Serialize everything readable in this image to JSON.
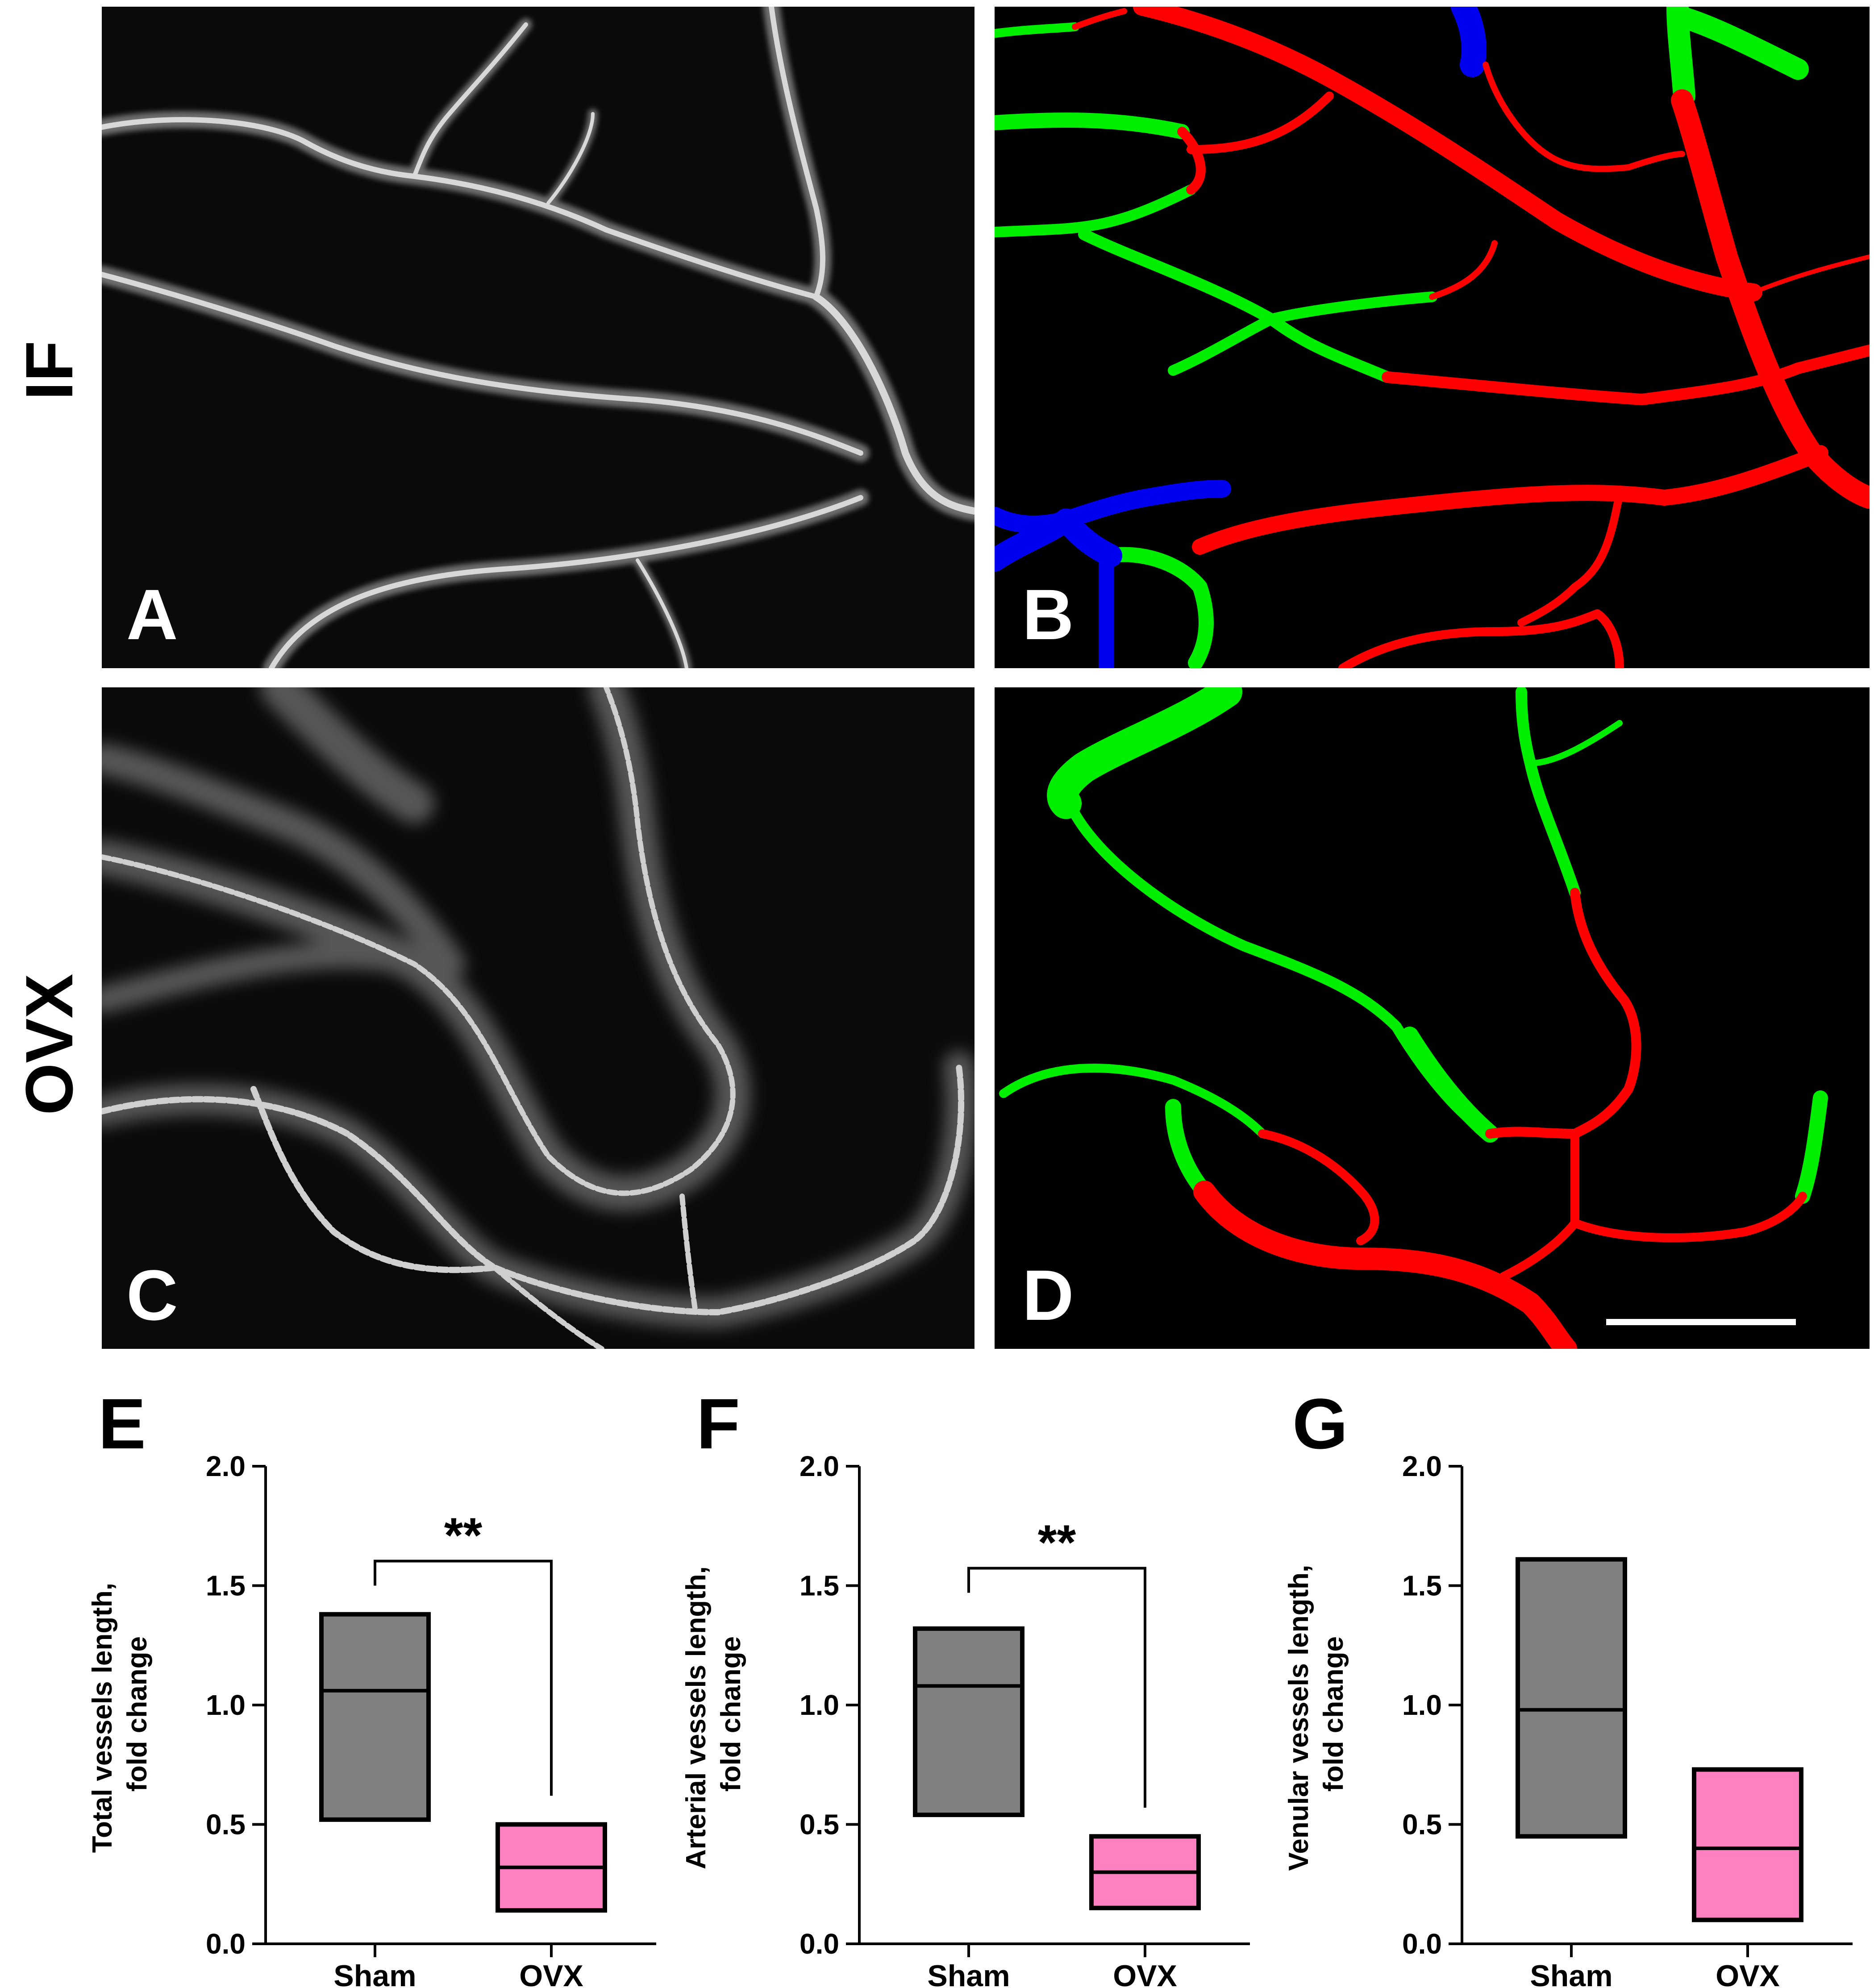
{
  "rows": [
    {
      "label": "IF"
    },
    {
      "label": "OVX"
    }
  ],
  "panels": [
    {
      "letter": "A",
      "kind": "fluorescence"
    },
    {
      "letter": "B",
      "kind": "segmentation"
    },
    {
      "letter": "C",
      "kind": "fluorescence"
    },
    {
      "letter": "D",
      "kind": "segmentation"
    }
  ],
  "colors": {
    "arterial": "#ff0000",
    "venular": "#00ee00",
    "other": "#0000ff",
    "sham_fill": "#808080",
    "ovx_fill": "#ff80c0"
  },
  "chart_data": [
    {
      "letter": "E",
      "type": "box",
      "ylabel": [
        "Total vessels length,",
        "fold change"
      ],
      "ylim": [
        0,
        2
      ],
      "yticks": [
        "0.0",
        "0.5",
        "1.0",
        "1.5",
        "2.0"
      ],
      "categories": [
        "Sham",
        "OVX"
      ],
      "series": [
        {
          "min": 0.52,
          "median": 1.06,
          "max": 1.38
        },
        {
          "min": 0.14,
          "median": 0.32,
          "max": 0.5
        }
      ],
      "significance": "**",
      "bracket": [
        1.5,
        0.62
      ]
    },
    {
      "letter": "F",
      "type": "box",
      "ylabel": [
        "Arterial vessels length,",
        "fold change"
      ],
      "ylim": [
        0,
        2
      ],
      "yticks": [
        "0.0",
        "0.5",
        "1.0",
        "1.5",
        "2.0"
      ],
      "categories": [
        "Sham",
        "OVX"
      ],
      "series": [
        {
          "min": 0.54,
          "median": 1.08,
          "max": 1.32
        },
        {
          "min": 0.15,
          "median": 0.3,
          "max": 0.45
        }
      ],
      "significance": "**",
      "bracket": [
        1.47,
        0.57
      ]
    },
    {
      "letter": "G",
      "type": "box",
      "ylabel": [
        "Venular vessels length,",
        "fold change"
      ],
      "ylim": [
        0,
        2
      ],
      "yticks": [
        "0.0",
        "0.5",
        "1.0",
        "1.5",
        "2.0"
      ],
      "categories": [
        "Sham",
        "OVX"
      ],
      "series": [
        {
          "min": 0.45,
          "median": 0.98,
          "max": 1.61
        },
        {
          "min": 0.1,
          "median": 0.4,
          "max": 0.73
        }
      ],
      "significance": "",
      "bracket": null
    }
  ]
}
